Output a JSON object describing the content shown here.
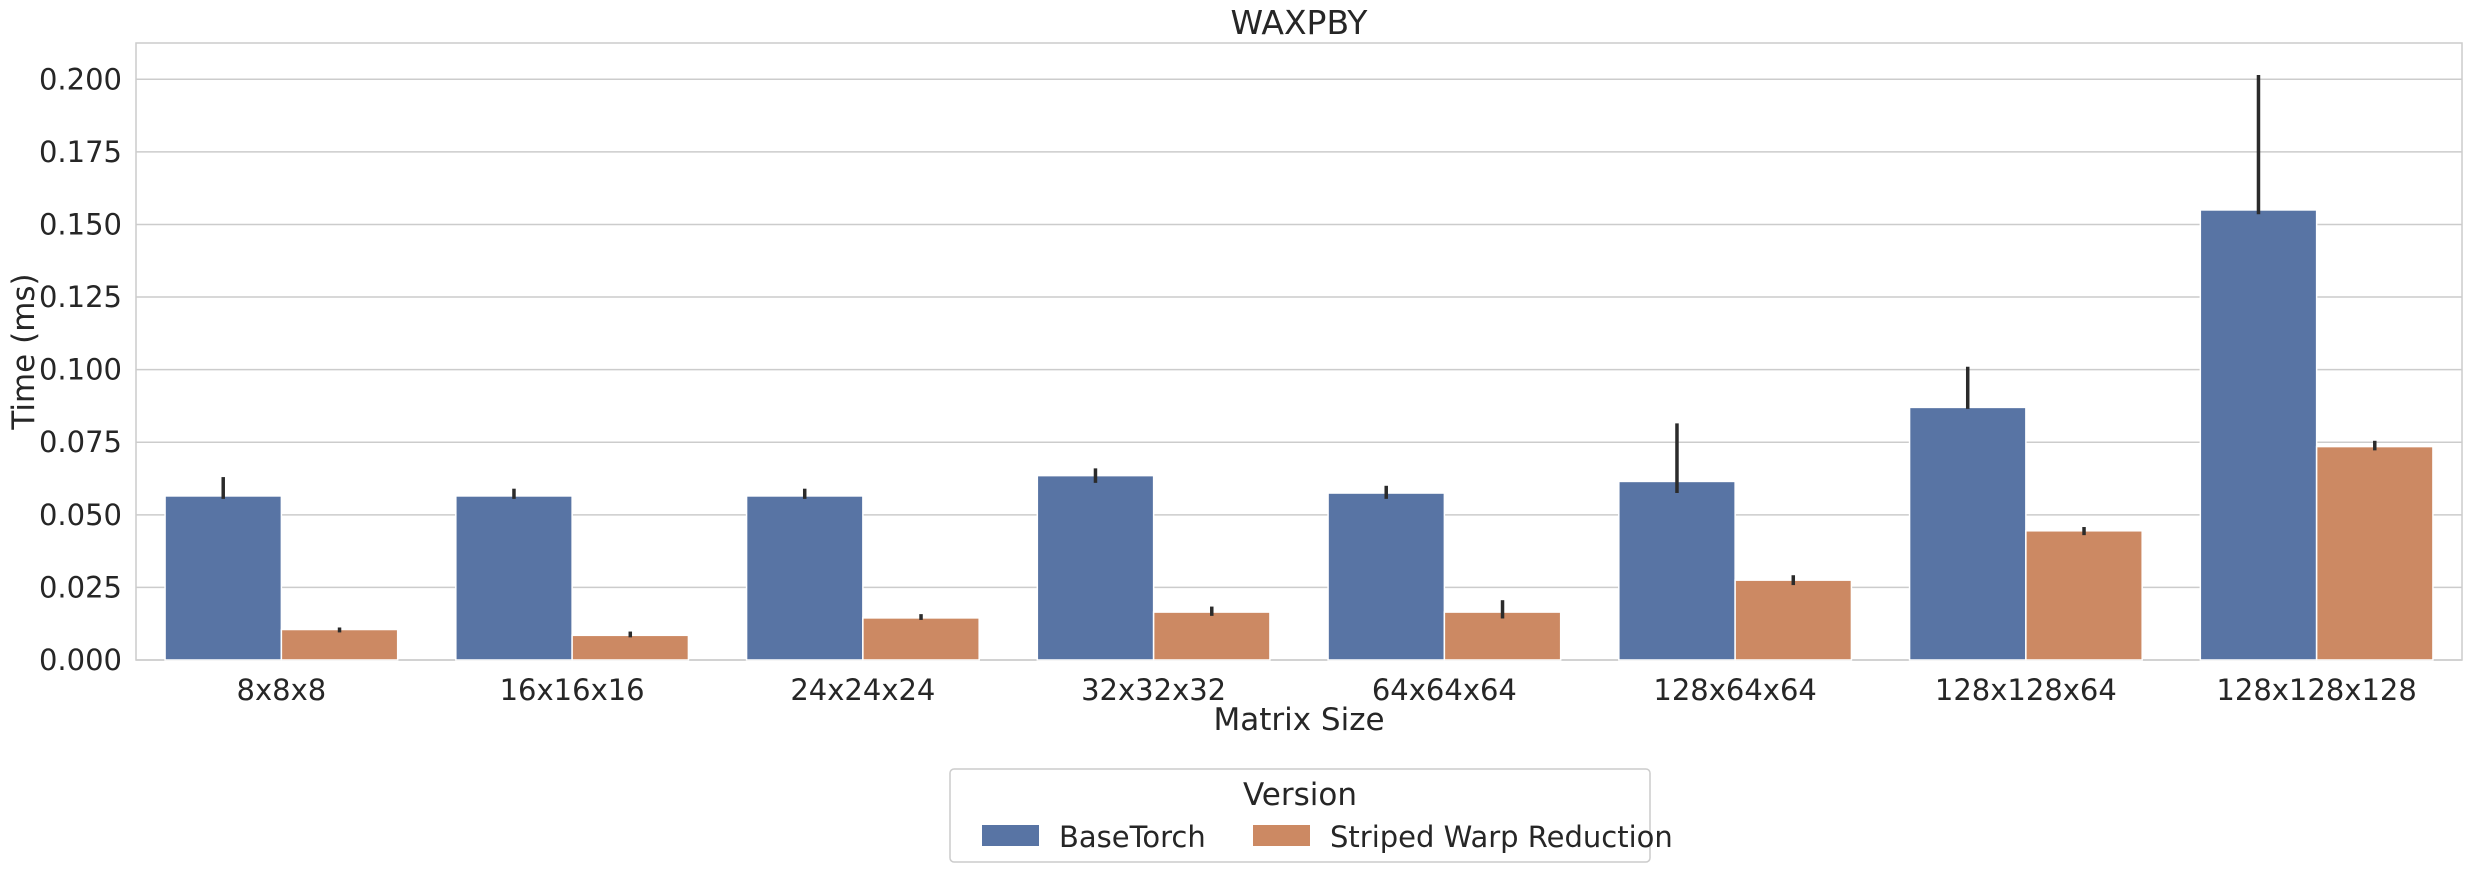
{
  "chart_data": {
    "type": "bar",
    "title": "WAXPBY",
    "xlabel": "Matrix Size",
    "ylabel": "Time (ms)",
    "categories": [
      "8x8x8",
      "16x16x16",
      "24x24x24",
      "32x32x32",
      "64x64x64",
      "128x64x64",
      "128x128x64",
      "128x128x128"
    ],
    "ylim": [
      0,
      0.2125
    ],
    "yticks": [
      0.0,
      0.025,
      0.05,
      0.075,
      0.1,
      0.125,
      0.15,
      0.175,
      0.2
    ],
    "ytick_labels": [
      "0.000",
      "0.025",
      "0.050",
      "0.075",
      "0.100",
      "0.125",
      "0.150",
      "0.175",
      "0.200"
    ],
    "grid": true,
    "legend": {
      "title": "Version",
      "placement": "bottom-center"
    },
    "series": [
      {
        "name": "BaseTorch",
        "color": "#5874a4",
        "values": [
          0.0565,
          0.0565,
          0.0565,
          0.0635,
          0.0575,
          0.0615,
          0.087,
          0.155
        ],
        "err_low": [
          0.0555,
          0.0555,
          0.0555,
          0.061,
          0.0555,
          0.0575,
          0.0865,
          0.1535
        ],
        "err_high": [
          0.063,
          0.059,
          0.059,
          0.066,
          0.06,
          0.0815,
          0.101,
          0.2015
        ]
      },
      {
        "name": "Striped Warp Reduction",
        "color": "#cc8963",
        "values": [
          0.0105,
          0.0085,
          0.0145,
          0.0165,
          0.0165,
          0.0275,
          0.0445,
          0.0735
        ],
        "err_low": [
          0.0095,
          0.0078,
          0.0138,
          0.0152,
          0.0143,
          0.0258,
          0.043,
          0.0722
        ],
        "err_high": [
          0.0112,
          0.0098,
          0.0158,
          0.0184,
          0.0206,
          0.0292,
          0.0458,
          0.0755
        ]
      }
    ]
  }
}
